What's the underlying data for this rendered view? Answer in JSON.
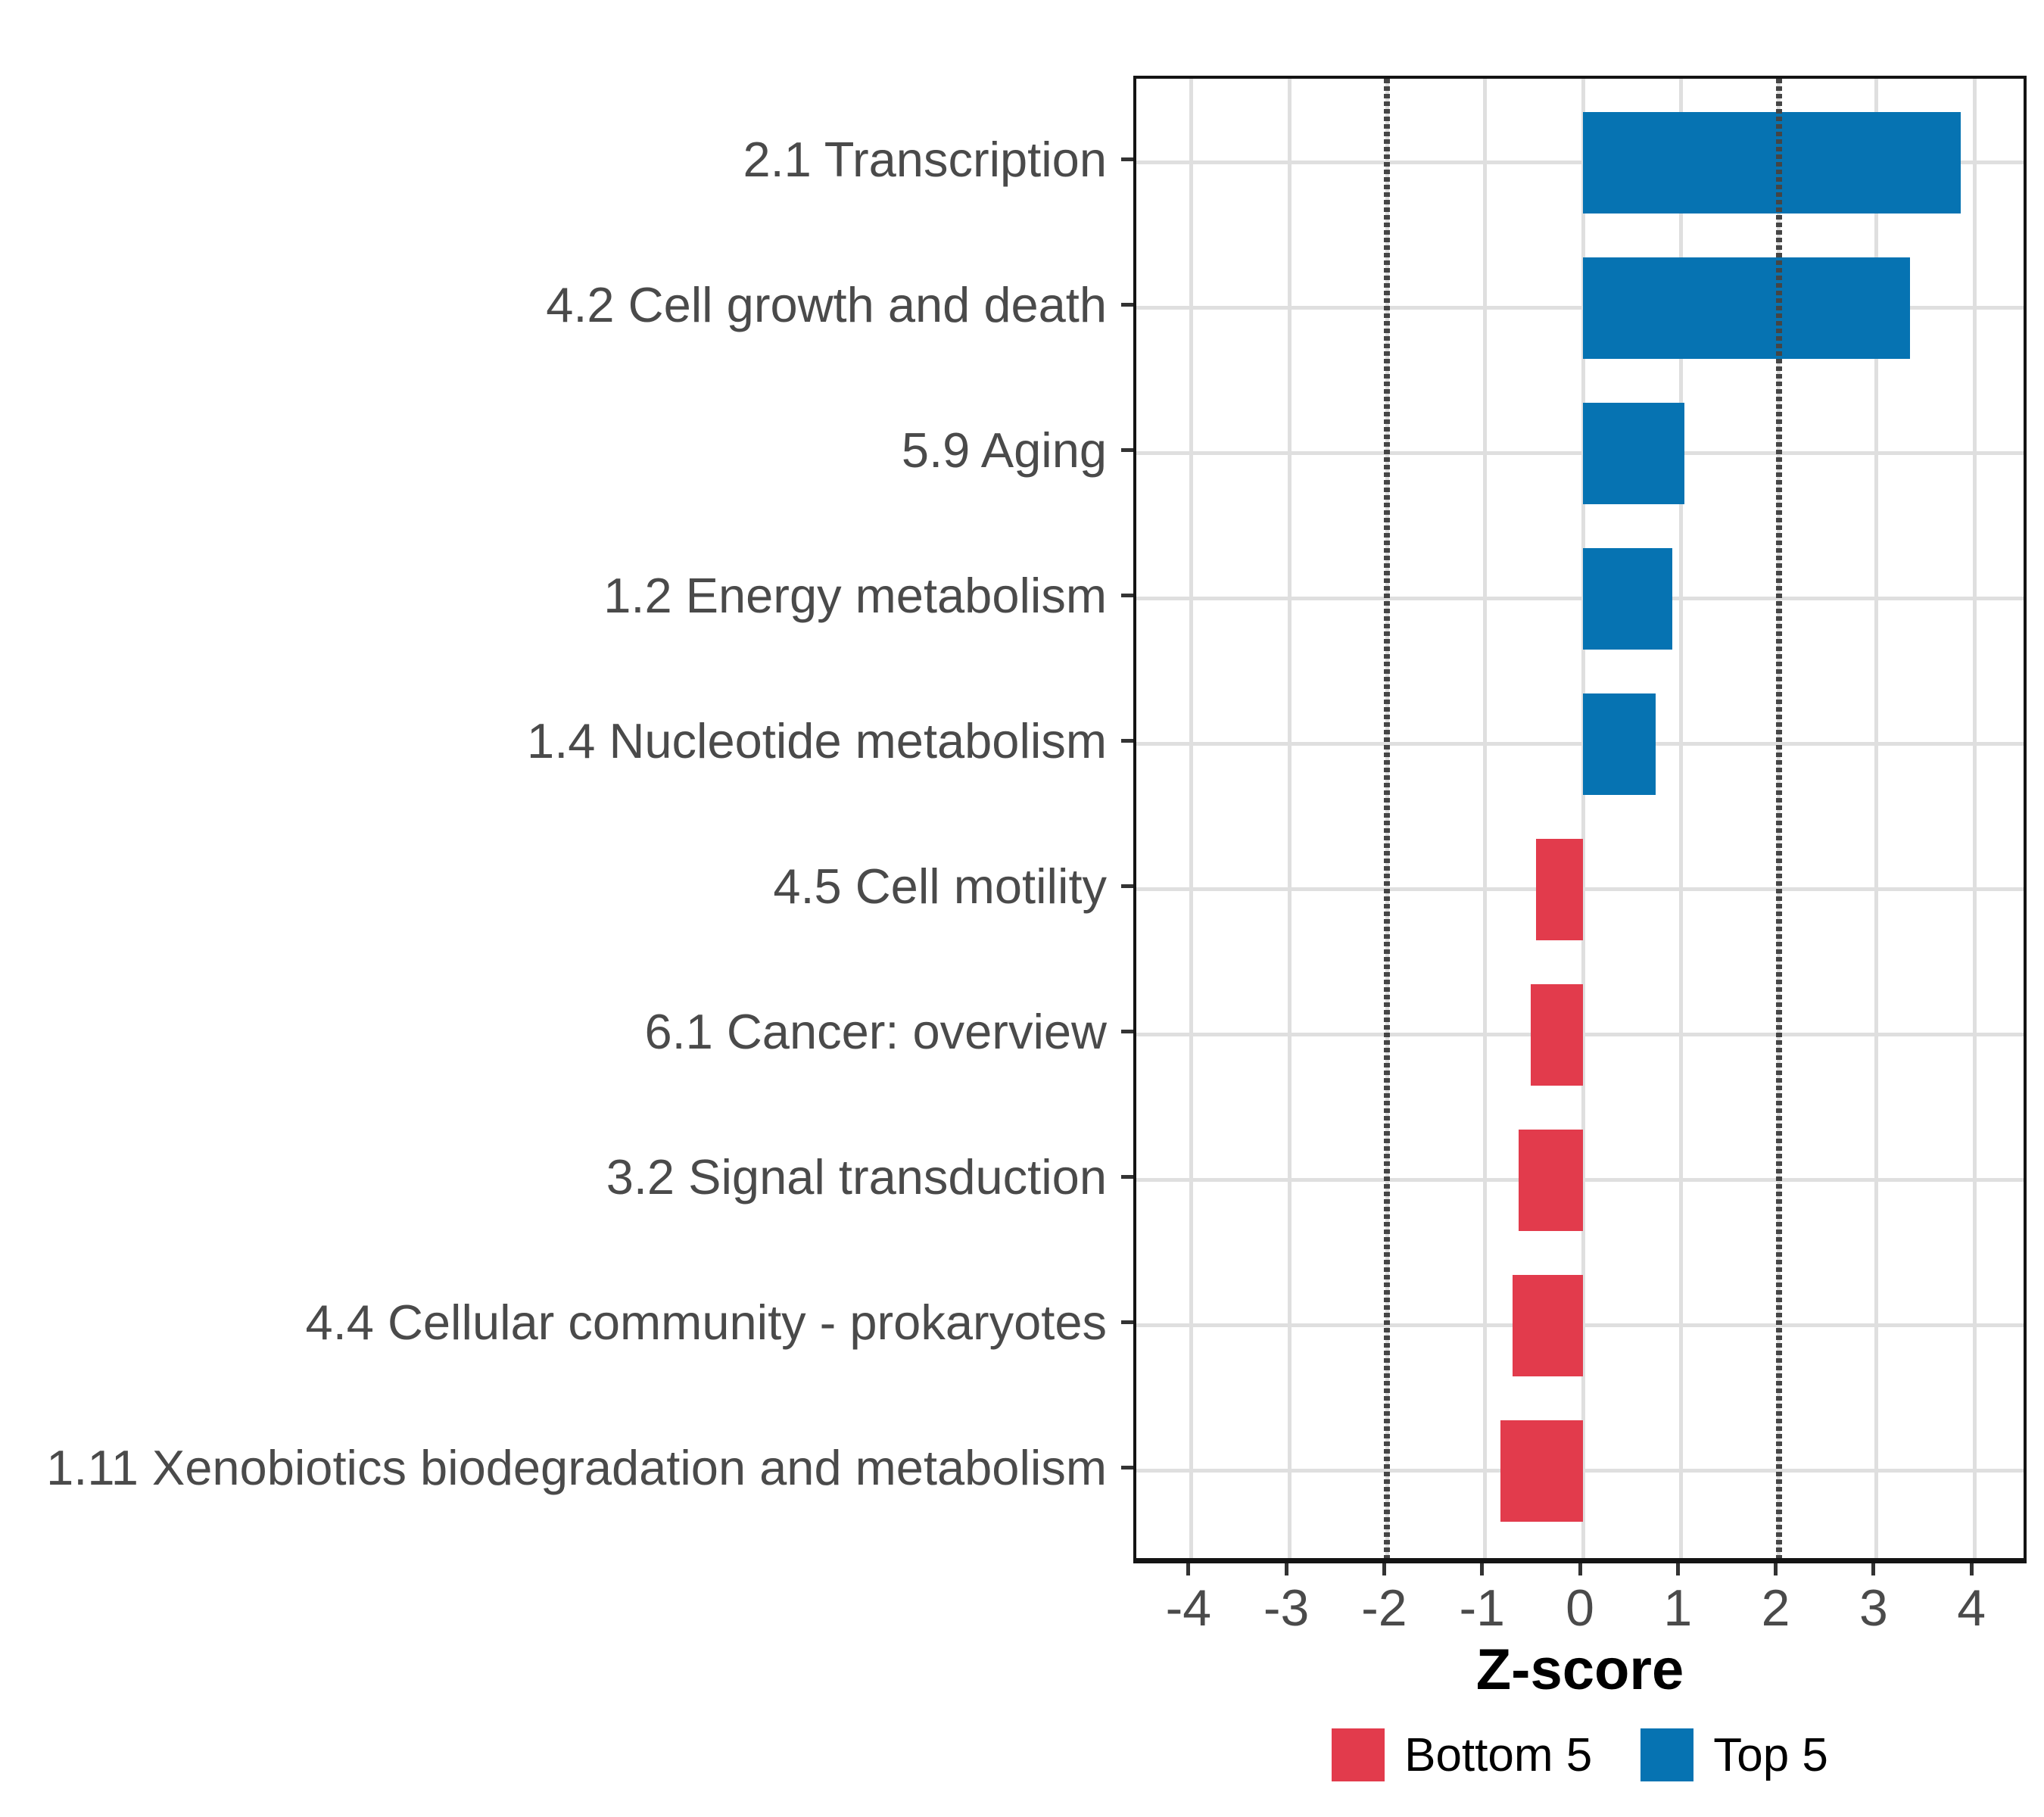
{
  "chart_data": {
    "type": "bar",
    "orientation": "horizontal",
    "title": "",
    "xlabel": "Z-score",
    "ylabel": "",
    "categories": [
      "2.1 Transcription",
      "4.2 Cell growth and death",
      "5.9 Aging",
      "1.2 Energy metabolism",
      "1.4 Nucleotide metabolism",
      "4.5 Cell motility",
      "6.1 Cancer: overview",
      "3.2 Signal transduction",
      "4.4 Cellular community - prokaryotes",
      "1.11 Xenobiotics biodegradation and metabolism"
    ],
    "values": [
      3.86,
      3.34,
      1.04,
      0.91,
      0.74,
      -0.48,
      -0.53,
      -0.66,
      -0.72,
      -0.84
    ],
    "groups": [
      "Top 5",
      "Top 5",
      "Top 5",
      "Top 5",
      "Top 5",
      "Bottom 5",
      "Bottom 5",
      "Bottom 5",
      "Bottom 5",
      "Bottom 5"
    ],
    "group_colors": {
      "Top 5": "#0673B2",
      "Bottom 5": "#E23B4C"
    },
    "x_ticks": [
      "-4",
      "-3",
      "-2",
      "-1",
      "0",
      "1",
      "2",
      "3",
      "4"
    ],
    "xlim": [
      -4.56,
      4.56
    ],
    "reference_lines": {
      "values": [
        -2,
        2
      ],
      "style": "dotted",
      "color": "#454545"
    },
    "grid": {
      "major_x": true,
      "category_y": true,
      "color": "#DFDFDF",
      "background": "#FFFFFF"
    },
    "legend_position": "bottom"
  },
  "legend": {
    "items": [
      {
        "label": "Bottom 5",
        "color": "#E23B4C"
      },
      {
        "label": "Top 5",
        "color": "#0673B2"
      }
    ]
  }
}
